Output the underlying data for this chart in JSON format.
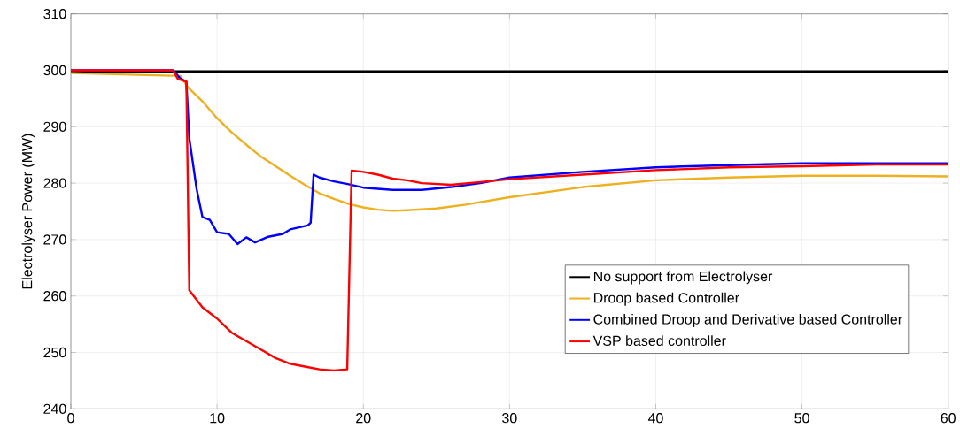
{
  "chart_data": {
    "type": "line",
    "ylabel": "Electrolyser Power (MW)",
    "xlim": [
      0,
      60
    ],
    "ylim": [
      240,
      310
    ],
    "xticks": [
      0,
      10,
      20,
      30,
      40,
      50,
      60
    ],
    "yticks": [
      240,
      250,
      260,
      270,
      280,
      290,
      300,
      310
    ],
    "grid": true,
    "legend": "bottom right",
    "line_style": "solid",
    "marker": "none",
    "series": [
      {
        "name": "No support from Electrolyser",
        "color": "#000000",
        "x": [
          0,
          10,
          20,
          30,
          40,
          50,
          60
        ],
        "values": [
          299.8,
          299.8,
          299.8,
          299.8,
          299.8,
          299.8,
          299.8
        ]
      },
      {
        "name": "Droop based Controller",
        "color": "#edb120",
        "x": [
          0,
          7.5,
          8,
          9,
          10,
          11,
          12,
          13,
          14,
          15,
          16,
          17,
          18,
          19,
          20,
          21,
          22,
          23,
          25,
          27,
          30,
          35,
          40,
          45,
          50,
          55,
          60
        ],
        "values": [
          299.5,
          299,
          297,
          294.5,
          291.5,
          289,
          286.8,
          284.7,
          283,
          281.3,
          279.7,
          278.2,
          277.2,
          276.3,
          275.7,
          275.3,
          275.1,
          275.2,
          275.5,
          276.2,
          277.5,
          279.3,
          280.5,
          281,
          281.3,
          281.3,
          281.2
        ]
      },
      {
        "name": "Combined Droop and Derivative based Controller",
        "color": "#0000ff",
        "x": [
          0,
          7,
          7.5,
          7.9,
          8.1,
          8.6,
          9,
          9.5,
          10,
          10.8,
          11.4,
          12,
          12.6,
          13.5,
          14.5,
          15,
          16.2,
          16.4,
          16.6,
          17,
          18,
          19,
          20,
          22,
          24,
          26,
          28,
          30,
          35,
          40,
          45,
          50,
          55,
          60
        ],
        "values": [
          300,
          300,
          298.5,
          298,
          288,
          279,
          274,
          273.5,
          271.3,
          271,
          269.2,
          270.4,
          269.5,
          270.5,
          271,
          271.8,
          272.5,
          273,
          281.5,
          281,
          280.3,
          279.8,
          279.2,
          278.8,
          278.8,
          279.3,
          280,
          281,
          282,
          282.8,
          283.2,
          283.5,
          283.5,
          283.5
        ]
      },
      {
        "name": "VSP based controller",
        "color": "#ff0000",
        "x": [
          0,
          7,
          7.3,
          7.9,
          8.1,
          9,
          10,
          11,
          12,
          13,
          14,
          15,
          16,
          17,
          18,
          18.9,
          19.2,
          20,
          21,
          22,
          23,
          24,
          26,
          28,
          30,
          35,
          40,
          45,
          50,
          55,
          60
        ],
        "values": [
          300,
          300,
          298.5,
          298,
          261,
          258,
          256,
          253.5,
          252,
          250.5,
          249,
          248,
          247.5,
          247,
          246.8,
          247,
          282.2,
          282,
          281.5,
          280.8,
          280.5,
          280,
          279.7,
          280.2,
          280.7,
          281.5,
          282.3,
          282.8,
          283,
          283.3,
          283.3
        ]
      }
    ]
  }
}
